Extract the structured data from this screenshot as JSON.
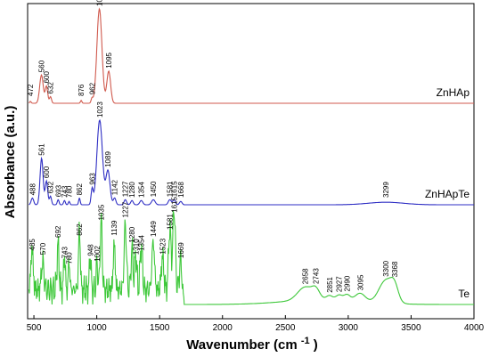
{
  "chart_data": {
    "type": "line",
    "xlabel": "Wavenumber (cm",
    "xlabel_sup": "-1",
    "xlabel_end": ")",
    "ylabel": "Absorbance (a.u.)",
    "xlim": [
      450,
      4000
    ],
    "x_ticks": [
      "500",
      "1000",
      "1500",
      "2000",
      "2500",
      "3000",
      "3500",
      "4000"
    ],
    "grid": false,
    "series": [
      {
        "name": "ZnHAp",
        "color": "#d05a4e",
        "peaks": [
          {
            "x": 472,
            "label": "472"
          },
          {
            "x": 560,
            "label": "560"
          },
          {
            "x": 600,
            "label": "600"
          },
          {
            "x": 632,
            "label": "632"
          },
          {
            "x": 876,
            "label": "876"
          },
          {
            "x": 962,
            "label": "962"
          },
          {
            "x": 1021,
            "label": "1021"
          },
          {
            "x": 1095,
            "label": "1095"
          }
        ]
      },
      {
        "name": "ZnHApTe",
        "color": "#2f2fc4",
        "peaks": [
          {
            "x": 488,
            "label": "488"
          },
          {
            "x": 561,
            "label": "561"
          },
          {
            "x": 600,
            "label": "600"
          },
          {
            "x": 632,
            "label": "632"
          },
          {
            "x": 693,
            "label": "693"
          },
          {
            "x": 743,
            "label": "743"
          },
          {
            "x": 780,
            "label": "780"
          },
          {
            "x": 862,
            "label": "862"
          },
          {
            "x": 963,
            "label": "963"
          },
          {
            "x": 1023,
            "label": "1023"
          },
          {
            "x": 1089,
            "label": "1089"
          },
          {
            "x": 1142,
            "label": "1142"
          },
          {
            "x": 1227,
            "label": "1227"
          },
          {
            "x": 1280,
            "label": "1280"
          },
          {
            "x": 1354,
            "label": "1354"
          },
          {
            "x": 1450,
            "label": "1450"
          },
          {
            "x": 1581,
            "label": "1581"
          },
          {
            "x": 1615,
            "label": "1615"
          },
          {
            "x": 1668,
            "label": "1668"
          },
          {
            "x": 3299,
            "label": "3299"
          }
        ]
      },
      {
        "name": "Te",
        "color": "#3ec83a",
        "peaks": [
          {
            "x": 485,
            "label": "485"
          },
          {
            "x": 570,
            "label": "570"
          },
          {
            "x": 692,
            "label": "692"
          },
          {
            "x": 743,
            "label": "743"
          },
          {
            "x": 780,
            "label": "780"
          },
          {
            "x": 862,
            "label": "862"
          },
          {
            "x": 948,
            "label": "948"
          },
          {
            "x": 1002,
            "label": "1002"
          },
          {
            "x": 1035,
            "label": "1035"
          },
          {
            "x": 1139,
            "label": "1139"
          },
          {
            "x": 1227,
            "label": "1227"
          },
          {
            "x": 1280,
            "label": "1280"
          },
          {
            "x": 1310,
            "label": "1310"
          },
          {
            "x": 1354,
            "label": "1354"
          },
          {
            "x": 1449,
            "label": "1449"
          },
          {
            "x": 1523,
            "label": "1523"
          },
          {
            "x": 1581,
            "label": "1581"
          },
          {
            "x": 1615,
            "label": "1615"
          },
          {
            "x": 1669,
            "label": "1669"
          },
          {
            "x": 2658,
            "label": "2658"
          },
          {
            "x": 2743,
            "label": "2743"
          },
          {
            "x": 2851,
            "label": "2851"
          },
          {
            "x": 2927,
            "label": "2927"
          },
          {
            "x": 2990,
            "label": "2990"
          },
          {
            "x": 3095,
            "label": "3095"
          },
          {
            "x": 3300,
            "label": "3300"
          },
          {
            "x": 3368,
            "label": "3368"
          }
        ]
      }
    ]
  }
}
